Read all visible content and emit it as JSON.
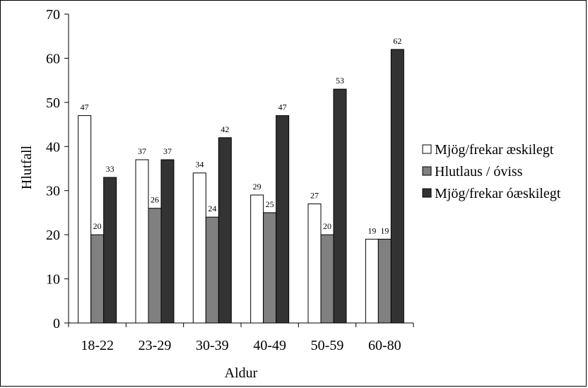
{
  "chart_data": {
    "type": "bar",
    "title": "",
    "xlabel": "Aldur",
    "ylabel": "Hlutfall",
    "ylim": [
      0,
      70
    ],
    "yticks": [
      0,
      10,
      20,
      30,
      40,
      50,
      60,
      70
    ],
    "grid": false,
    "legend_position": "right",
    "categories": [
      "18-22",
      "23-29",
      "30-39",
      "40-49",
      "50-59",
      "60-80"
    ],
    "series": [
      {
        "name": "Mjög/frekar æskilegt",
        "color": "#ffffff",
        "values": [
          47,
          37,
          34,
          29,
          27,
          19
        ]
      },
      {
        "name": "Hlutlaus / óviss",
        "color": "#808080",
        "values": [
          20,
          26,
          24,
          25,
          20,
          19
        ]
      },
      {
        "name": "Mjög/frekar óæskilegt",
        "color": "#333333",
        "values": [
          33,
          37,
          42,
          47,
          53,
          62
        ]
      }
    ]
  }
}
